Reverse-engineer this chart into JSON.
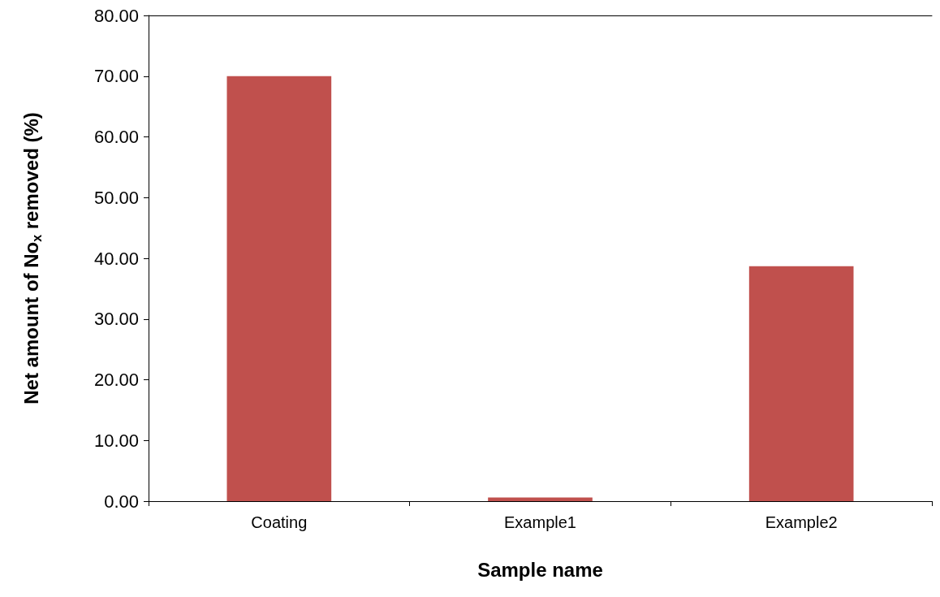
{
  "chart_data": {
    "type": "bar",
    "xlabel": "Sample name",
    "ylabel": "Net amount of No$_{x}$ removed (%)",
    "categories": [
      "Coating",
      "Example1",
      "Example2"
    ],
    "values": [
      70.0,
      0.6,
      38.7
    ],
    "color": "#c0504d",
    "ylim": [
      0,
      80
    ],
    "yticks": [
      {
        "value": 0,
        "label": "0.00"
      },
      {
        "value": 10,
        "label": "10.00"
      },
      {
        "value": 20,
        "label": "20.00"
      },
      {
        "value": 30,
        "label": "30.00"
      },
      {
        "value": 40,
        "label": "40.00"
      },
      {
        "value": 50,
        "label": "50.00"
      },
      {
        "value": 60,
        "label": "60.00"
      },
      {
        "value": 70,
        "label": "70.00"
      },
      {
        "value": 80,
        "label": "80.00"
      }
    ],
    "grid": false
  }
}
